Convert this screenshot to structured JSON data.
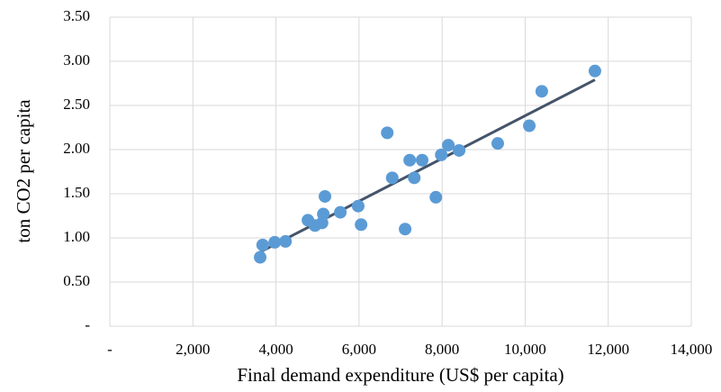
{
  "chart_data": {
    "type": "scatter",
    "x_label": "Final demand expenditure (US$ per capita)",
    "y_label": "ton CO2 per capita",
    "xlim": [
      0,
      14000
    ],
    "ylim": [
      0,
      3.5
    ],
    "xticks": [
      {
        "value": 0,
        "label": "-"
      },
      {
        "value": 2000,
        "label": "2,000"
      },
      {
        "value": 4000,
        "label": "4,000"
      },
      {
        "value": 6000,
        "label": "6,000"
      },
      {
        "value": 8000,
        "label": "8,000"
      },
      {
        "value": 10000,
        "label": "10,000"
      },
      {
        "value": 12000,
        "label": "12,000"
      },
      {
        "value": 14000,
        "label": "14,000"
      }
    ],
    "yticks": [
      {
        "value": 0,
        "label": "-"
      },
      {
        "value": 0.5,
        "label": "0.50"
      },
      {
        "value": 1,
        "label": "1.00"
      },
      {
        "value": 1.5,
        "label": "1.50"
      },
      {
        "value": 2,
        "label": "2.00"
      },
      {
        "value": 2.5,
        "label": "2.50"
      },
      {
        "value": 3,
        "label": "3.00"
      },
      {
        "value": 3.5,
        "label": "3.50"
      }
    ],
    "grid": true,
    "color": "#5b9bd5",
    "x": [
      3620,
      3680,
      3970,
      4230,
      4770,
      4940,
      5110,
      5140,
      5180,
      5550,
      5980,
      6050,
      6680,
      6800,
      7110,
      7220,
      7330,
      7520,
      7850,
      7980,
      8150,
      8410,
      9340,
      10100,
      10400,
      11680
    ],
    "values": [
      0.78,
      0.92,
      0.95,
      0.96,
      1.2,
      1.14,
      1.17,
      1.27,
      1.47,
      1.29,
      1.36,
      1.15,
      2.19,
      1.68,
      1.1,
      1.88,
      1.68,
      1.88,
      1.46,
      1.94,
      2.05,
      1.99,
      2.07,
      2.27,
      2.66,
      2.89
    ],
    "trendline": {
      "x": [
        3620,
        11680
      ],
      "values": [
        0.84,
        2.79
      ],
      "color": "#44546a"
    }
  }
}
